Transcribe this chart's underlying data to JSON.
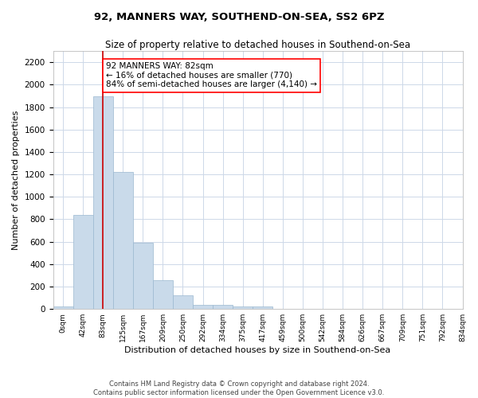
{
  "title": "92, MANNERS WAY, SOUTHEND-ON-SEA, SS2 6PZ",
  "subtitle": "Size of property relative to detached houses in Southend-on-Sea",
  "xlabel": "Distribution of detached houses by size in Southend-on-Sea",
  "ylabel": "Number of detached properties",
  "bar_color": "#c9daea",
  "bar_edge_color": "#9ab8d0",
  "bin_labels": [
    "0sqm",
    "42sqm",
    "83sqm",
    "125sqm",
    "167sqm",
    "209sqm",
    "250sqm",
    "292sqm",
    "334sqm",
    "375sqm",
    "417sqm",
    "459sqm",
    "500sqm",
    "542sqm",
    "584sqm",
    "626sqm",
    "667sqm",
    "709sqm",
    "751sqm",
    "792sqm",
    "834sqm"
  ],
  "bar_values": [
    25,
    840,
    1900,
    1225,
    590,
    255,
    120,
    40,
    35,
    25,
    20,
    0,
    0,
    0,
    0,
    0,
    0,
    0,
    0,
    0
  ],
  "red_line_index": 2.0,
  "annotation_text": "92 MANNERS WAY: 82sqm\n← 16% of detached houses are smaller (770)\n84% of semi-detached houses are larger (4,140) →",
  "annotation_box_color": "white",
  "annotation_border_color": "red",
  "red_line_color": "#cc0000",
  "ylim": [
    0,
    2300
  ],
  "yticks": [
    0,
    200,
    400,
    600,
    800,
    1000,
    1200,
    1400,
    1600,
    1800,
    2000,
    2200
  ],
  "grid_color": "#cdd8e8",
  "footer_line1": "Contains HM Land Registry data © Crown copyright and database right 2024.",
  "footer_line2": "Contains public sector information licensed under the Open Government Licence v3.0.",
  "n_bins": 20
}
